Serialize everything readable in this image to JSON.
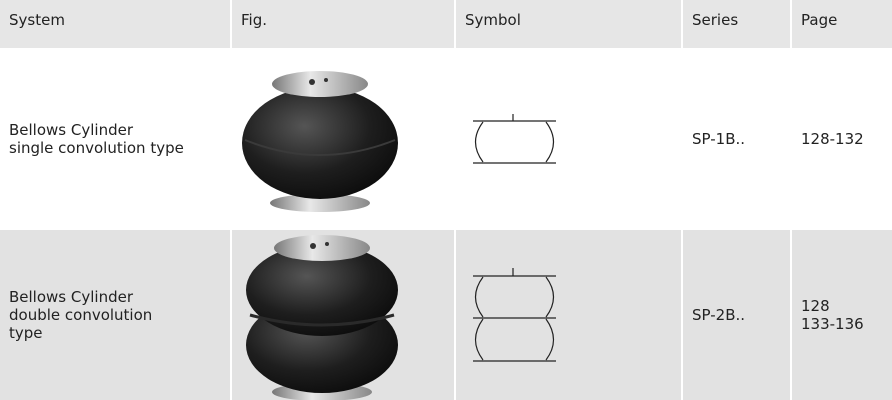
{
  "table": {
    "header": [
      "System",
      "Fig.",
      "Symbol",
      "Series",
      "Page"
    ],
    "rows": [
      {
        "system": [
          "Bellows Cylinder",
          "single convolution type"
        ],
        "series": "SP-1B..",
        "page": [
          "128-132"
        ]
      },
      {
        "system": [
          "Bellows Cylinder",
          "double convolution",
          "type"
        ],
        "series": "SP-2B..",
        "page": [
          "128",
          "133-136"
        ]
      }
    ]
  }
}
